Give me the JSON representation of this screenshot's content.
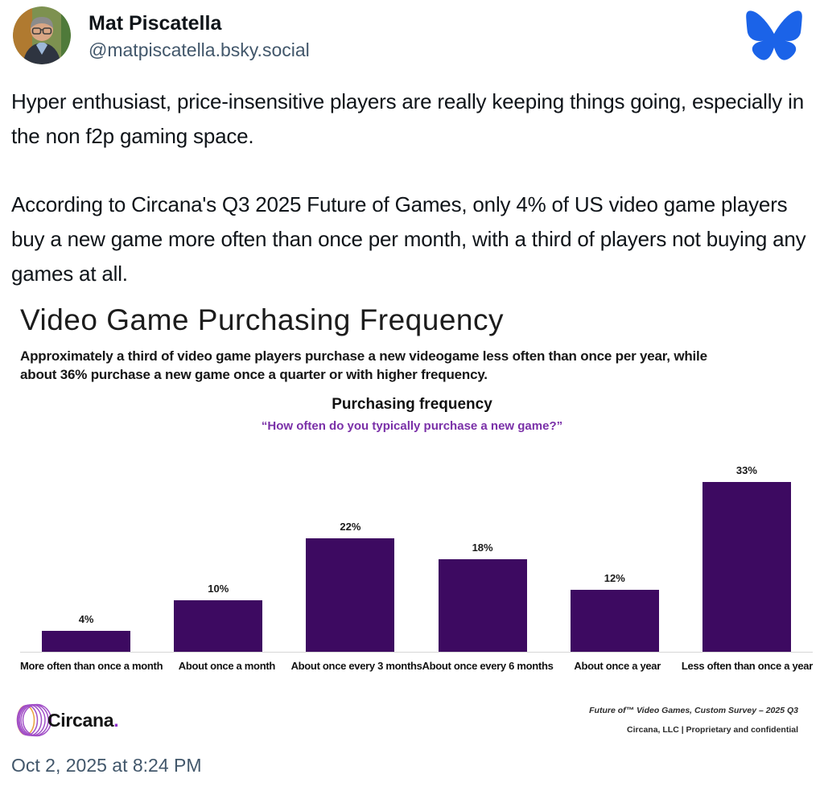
{
  "header": {
    "name": "Mat Piscatella",
    "handle": "@matpiscatella.bsky.social"
  },
  "post": {
    "paragraphs": [
      "Hyper enthusiast, price-insensitive players are really keeping things going, especially in the non f2p gaming space.",
      "According to Circana's Q3 2025 Future of Games, only 4% of US video game players buy a new game more often than once per month, with a third of players not buying any games at all."
    ]
  },
  "chart": {
    "title": "Video Game Purchasing Frequency",
    "subtitle_line1": "Approximately a third of video game players purchase a new videogame less often than once per year, while",
    "subtitle_line2": "about 36% purchase a new game once a quarter or with higher frequency.",
    "heading": "Purchasing frequency",
    "question": "“How often do you typically purchase a new game?”"
  },
  "chart_data": {
    "type": "bar",
    "title": "Purchasing frequency",
    "subtitle": "How often do you typically purchase a new game?",
    "categories": [
      "More often than once a month",
      "About once a month",
      "About once every 3 months",
      "About once every 6 months",
      "About once a year",
      "Less often than once a year"
    ],
    "values": [
      4,
      10,
      22,
      18,
      12,
      33
    ],
    "unit": "%",
    "ylim": [
      0,
      35
    ],
    "grid": false,
    "legend": "none",
    "data_labels": true,
    "bar_color": "#3d0a61"
  },
  "footer": {
    "brand": "Circana",
    "brand_dot": ".",
    "source_line1": "Future of™ Video Games, Custom Survey – 2025 Q3",
    "source_line2": "Circana, LLC |  Proprietary and confidential"
  },
  "timestamp": "Oct 2, 2025 at 8:24 PM",
  "colors": {
    "bluesky_blue": "#1b63e8",
    "bar_purple": "#3d0a61",
    "question_purple": "#7a30a8",
    "muted_text": "#42576b",
    "circana_purple": "#a14fc7",
    "circana_orange": "#e9a23b"
  }
}
